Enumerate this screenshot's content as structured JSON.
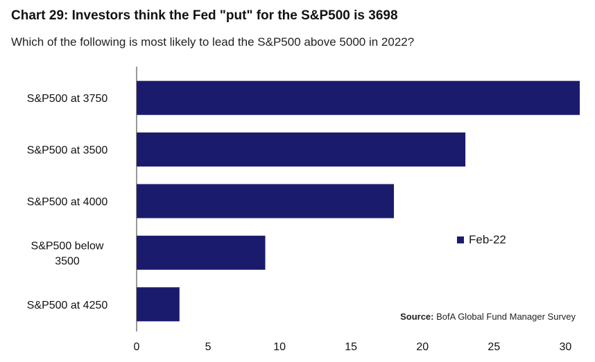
{
  "chart_data": {
    "type": "bar",
    "orientation": "horizontal",
    "title": "Chart 29: Investors think the Fed \"put\" for the S&P500 is 3698",
    "subtitle": "Which of the following is most likely to lead the S&P500 above 5000 in 2022?",
    "categories": [
      [
        "S&P500 at 3750"
      ],
      [
        "S&P500 at 3500"
      ],
      [
        "S&P500 at 4000"
      ],
      [
        "S&P500 below",
        "3500"
      ],
      [
        "S&P500 at 4250"
      ]
    ],
    "series": [
      {
        "name": "Feb-22",
        "values": [
          31,
          23,
          18,
          9,
          3
        ]
      }
    ],
    "xlim": [
      0,
      31
    ],
    "xticks": [
      0,
      5,
      10,
      15,
      20,
      25,
      30
    ],
    "grid": false,
    "legend_position": "right-middle",
    "bar_color": "#1b1b6e",
    "source_label": "Source:",
    "source_text": "BofA Global Fund Manager Survey"
  }
}
